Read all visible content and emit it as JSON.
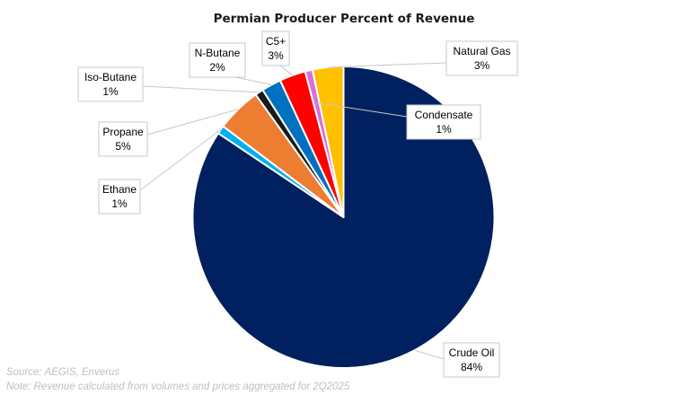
{
  "chart_data": {
    "type": "pie",
    "title": "Permian Producer Percent of Revenue",
    "start_angle": "12 o'clock",
    "direction": "clockwise",
    "slices": [
      {
        "name": "Crude Oil",
        "value": 84.4,
        "label": "84%",
        "color": "#002060"
      },
      {
        "name": "Ethane",
        "value": 0.9,
        "label": "1%",
        "color": "#00B0F0"
      },
      {
        "name": "Propane",
        "value": 4.8,
        "label": "5%",
        "color": "#ED7D31"
      },
      {
        "name": "Iso-Butane",
        "value": 0.9,
        "label": "1%",
        "color": "#1A1A1A"
      },
      {
        "name": "N-Butane",
        "value": 2.1,
        "label": "2%",
        "color": "#0070C0"
      },
      {
        "name": "C5+",
        "value": 2.8,
        "label": "3%",
        "color": "#FF0000"
      },
      {
        "name": "Condensate",
        "value": 0.8,
        "label": "1%",
        "color": "#DA70D6"
      },
      {
        "name": "Natural Gas",
        "value": 3.3,
        "label": "3%",
        "color": "#FFC000"
      }
    ]
  },
  "footnotes": {
    "source": "Source: AEGIS, Enverus",
    "note": "Note: Revenue calculated from volumes and prices aggregated for 2Q2025"
  }
}
